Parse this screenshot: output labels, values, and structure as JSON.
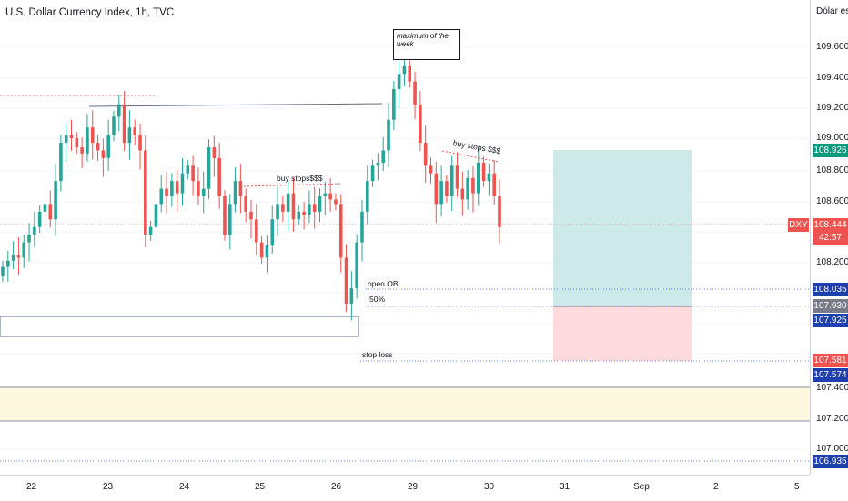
{
  "header": {
    "title": "U.S. Dollar Currency Index, 1h, TVC"
  },
  "price_axis": {
    "unit_label": "Dólar esta",
    "ticks": [
      "109.600",
      "109.400",
      "109.200",
      "109.000",
      "108.800",
      "108.600",
      "108.200",
      "107.400",
      "107.200",
      "107.000"
    ]
  },
  "price_tags": {
    "target": "108.926",
    "symbol": "DXY",
    "current": "108.444",
    "countdown": "42:57",
    "open_ob": "108.035",
    "mid": "107.930",
    "entry": "107.925",
    "stop": "107.581",
    "stop_line": "107.574",
    "bottom": "106.935"
  },
  "time_axis": {
    "labels": [
      "22",
      "23",
      "24",
      "25",
      "26",
      "29",
      "30",
      "31",
      "Sep",
      "2",
      "5"
    ]
  },
  "annotations": {
    "maximum": "maximum of the week",
    "buy_stops_1": "buy stops$$$",
    "buy_stops_2": "buy stops $$$",
    "open_ob": "open OB",
    "fifty": "50%",
    "stop_loss": "stop loss"
  },
  "colors": {
    "up": "#26a69a",
    "down": "#ef5350",
    "target_zone": "#b2dfdb",
    "stop_zone": "#ffcdd2"
  },
  "chart_data": {
    "type": "candlestick",
    "title": "U.S. Dollar Currency Index, 1h, TVC",
    "x": [
      "22",
      "23",
      "24",
      "25",
      "26",
      "29",
      "30"
    ],
    "ylim": [
      106.8,
      109.8
    ],
    "current_price": 108.444,
    "levels": {
      "target": 108.926,
      "open_ob": 108.035,
      "mid": 107.93,
      "entry": 107.925,
      "stop": 107.581,
      "stop_line": 107.574,
      "bottom": 106.935
    },
    "closes": [
      108.14,
      108.18,
      108.22,
      108.2,
      108.3,
      108.35,
      108.4,
      108.5,
      108.55,
      108.45,
      108.7,
      108.95,
      109.0,
      108.98,
      108.92,
      108.88,
      109.05,
      108.95,
      108.9,
      108.85,
      109.0,
      109.12,
      109.2,
      108.95,
      109.05,
      109.0,
      108.9,
      108.35,
      108.4,
      108.55,
      108.65,
      108.6,
      108.7,
      108.62,
      108.75,
      108.8,
      108.7,
      108.6,
      108.65,
      108.92,
      108.85,
      108.6,
      108.35,
      108.55,
      108.7,
      108.6,
      108.5,
      108.45,
      108.3,
      108.2,
      108.28,
      108.45,
      108.55,
      108.5,
      108.62,
      108.45,
      108.5,
      108.48,
      108.55,
      108.5,
      108.6,
      108.62,
      108.58,
      108.55,
      108.2,
      107.9,
      108.0,
      108.3,
      108.5,
      108.7,
      108.8,
      108.82,
      108.9,
      109.1,
      109.3,
      109.4,
      109.45,
      109.35,
      109.2,
      108.95,
      108.8,
      108.75,
      108.55,
      108.7,
      108.6,
      108.8,
      108.65,
      108.58,
      108.72,
      108.62,
      108.82,
      108.7,
      108.75,
      108.6,
      108.4
    ]
  }
}
